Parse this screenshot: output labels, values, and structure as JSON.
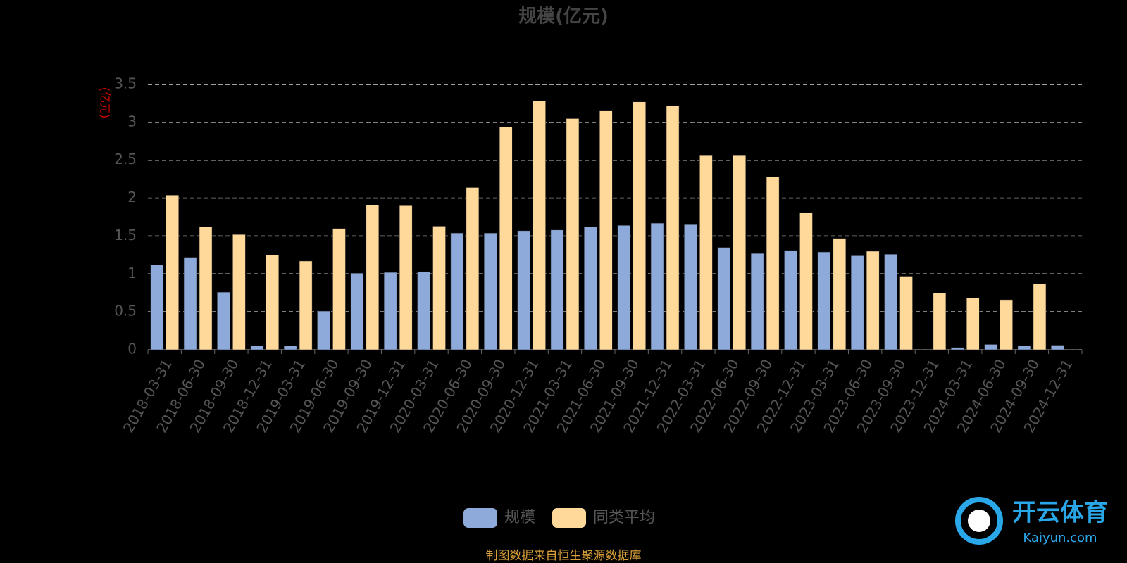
{
  "chart_data": {
    "type": "bar",
    "title": "规模(亿元)",
    "y_axis_label": "(亿元)",
    "categories": [
      "2018-03-31",
      "2018-06-30",
      "2018-09-30",
      "2018-12-31",
      "2019-03-31",
      "2019-06-30",
      "2019-09-30",
      "2019-12-31",
      "2020-03-31",
      "2020-06-30",
      "2020-09-30",
      "2020-12-31",
      "2021-03-31",
      "2021-06-30",
      "2021-09-30",
      "2021-12-31",
      "2022-03-31",
      "2022-06-30",
      "2022-09-30",
      "2022-12-31",
      "2023-03-31",
      "2023-06-30",
      "2023-09-30",
      "2023-12-31",
      "2024-03-31",
      "2024-06-30",
      "2024-09-30",
      "2024-12-31"
    ],
    "series": [
      {
        "name": "规模",
        "color": "#8eaadb",
        "values": [
          1.12,
          1.22,
          0.76,
          0.05,
          0.05,
          0.51,
          1.01,
          1.02,
          1.03,
          1.54,
          1.54,
          1.57,
          1.58,
          1.62,
          1.64,
          1.67,
          1.65,
          1.35,
          1.27,
          1.31,
          1.29,
          1.24,
          1.26,
          0,
          0.03,
          0.07,
          0.05,
          0.06
        ]
      },
      {
        "name": "同类平均",
        "color": "#ffd99a",
        "values": [
          2.04,
          1.62,
          1.52,
          1.25,
          1.17,
          1.6,
          1.91,
          1.9,
          1.63,
          2.14,
          2.94,
          3.28,
          3.05,
          3.15,
          3.27,
          3.22,
          2.57,
          2.57,
          2.28,
          1.81,
          1.47,
          1.3,
          0.97,
          0.75,
          0.68,
          0.66,
          0.87,
          null
        ]
      }
    ],
    "ylim": [
      0,
      3.5
    ],
    "yticks": [
      0,
      0.5,
      1,
      1.5,
      2,
      2.5,
      3,
      3.5
    ],
    "grid": true,
    "source": "制图数据来自恒生聚源数据库",
    "watermark": {
      "name": "开云体育",
      "site": "Kaiyun.com"
    }
  }
}
